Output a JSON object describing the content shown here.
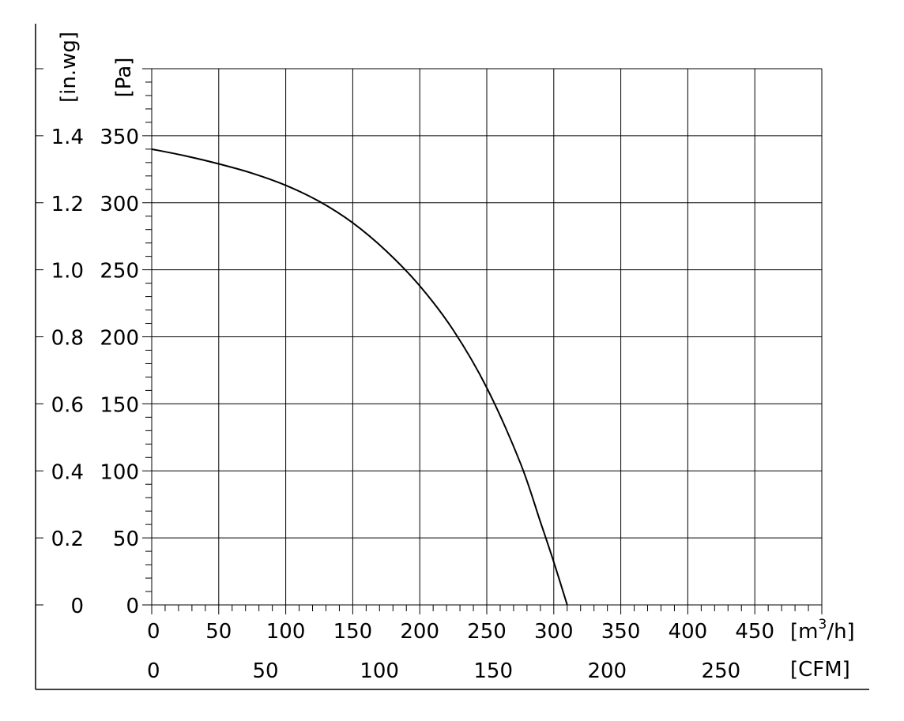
{
  "chart_data": {
    "type": "line",
    "title": "",
    "x_primary": {
      "unit_prefix": "[m",
      "unit_sup": "3",
      "unit_suffix": "/h]",
      "ticks": [
        0,
        50,
        100,
        150,
        200,
        250,
        300,
        350,
        400,
        450
      ],
      "range": [
        0,
        500
      ]
    },
    "x_secondary": {
      "unit": "[CFM]",
      "ticks": [
        0,
        50,
        100,
        150,
        200,
        250
      ]
    },
    "y_primary": {
      "unit": "[Pa]",
      "ticks": [
        0,
        50,
        100,
        150,
        200,
        250,
        300,
        350
      ],
      "range": [
        0,
        400
      ]
    },
    "y_secondary": {
      "unit": "[in.wg]",
      "ticks": [
        "0",
        "0.2",
        "0.4",
        "0.6",
        "0.8",
        "1.0",
        "1.2",
        "1.4"
      ]
    },
    "grid": true,
    "series": [
      {
        "x": [
          0,
          25,
          50,
          75,
          100,
          125,
          150,
          175,
          200,
          225,
          250,
          275,
          290,
          300,
          310
        ],
        "y": [
          340,
          335,
          329,
          322,
          313,
          301,
          285,
          264,
          238,
          205,
          162,
          106,
          62,
          32,
          0
        ]
      }
    ]
  }
}
